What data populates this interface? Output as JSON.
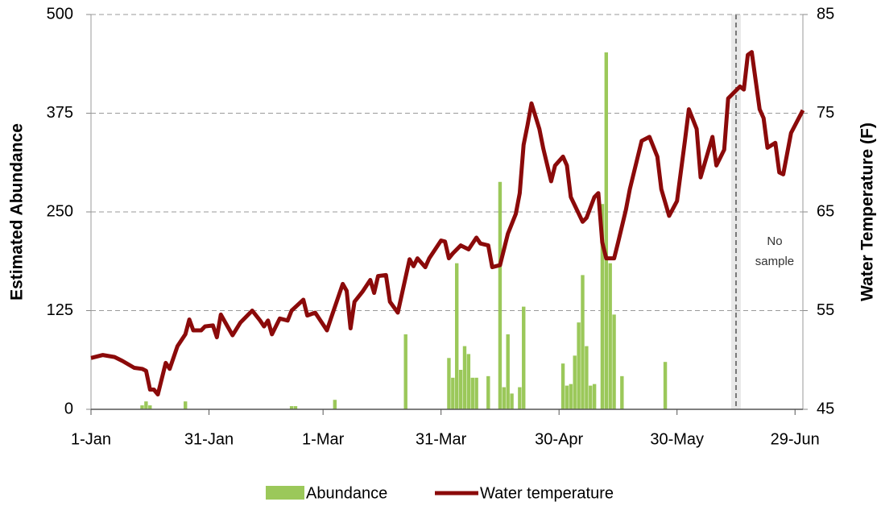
{
  "chart_data": {
    "type": "combo",
    "y_label": "Estimated Abundance",
    "y2_label": "Water Temperature (F)",
    "xlim": [
      0,
      181
    ],
    "xticks": [
      {
        "value": 0,
        "label": "1-Jan"
      },
      {
        "value": 30,
        "label": "31-Jan"
      },
      {
        "value": 59,
        "label": "1-Mar"
      },
      {
        "value": 89,
        "label": "31-Mar"
      },
      {
        "value": 119,
        "label": "30-Apr"
      },
      {
        "value": 149,
        "label": "30-May"
      },
      {
        "value": 179,
        "label": "29-Jun"
      }
    ],
    "ylim": [
      0,
      500
    ],
    "yticks": [
      0,
      125,
      250,
      375,
      500
    ],
    "y2lim": [
      45,
      85
    ],
    "y2ticks": [
      45,
      55,
      65,
      75,
      85
    ],
    "grid": true,
    "legend": "bottom",
    "annotation": {
      "x": 164,
      "lines": [
        "No",
        "sample"
      ]
    },
    "series": [
      {
        "name": "Abundance",
        "type": "bar",
        "color": "#9bc85a",
        "x": [
          13,
          14,
          15,
          24,
          51,
          52,
          62,
          80,
          91,
          92,
          93,
          94,
          95,
          96,
          97,
          98,
          101,
          104,
          105,
          106,
          107,
          109,
          110,
          120,
          121,
          122,
          123,
          124,
          125,
          126,
          127,
          128,
          130,
          131,
          132,
          133,
          135,
          146
        ],
        "values": [
          5,
          10,
          5,
          10,
          4,
          4,
          12,
          95,
          65,
          40,
          185,
          50,
          80,
          70,
          40,
          40,
          42,
          288,
          28,
          95,
          20,
          28,
          130,
          58,
          30,
          32,
          68,
          110,
          170,
          80,
          30,
          32,
          260,
          452,
          185,
          120,
          42,
          60
        ]
      },
      {
        "name": "Water temperature",
        "type": "line",
        "axis": "y2",
        "color": "#8b0a0a",
        "x": [
          0,
          3,
          6,
          8,
          11,
          13,
          14,
          15,
          16,
          17,
          19,
          20,
          22,
          24,
          25,
          26,
          28,
          29,
          31,
          32,
          33,
          35,
          36,
          38,
          41,
          43,
          44,
          45,
          46,
          48,
          50,
          51,
          54,
          55,
          57,
          60,
          61,
          64,
          65,
          66,
          67,
          69,
          71,
          72,
          73,
          75,
          76,
          78,
          81,
          82,
          83,
          85,
          86,
          89,
          90,
          91,
          92,
          94,
          96,
          98,
          99,
          101,
          102,
          104,
          106,
          108,
          109,
          110,
          111,
          112,
          114,
          115,
          117,
          118,
          120,
          121,
          122,
          125,
          126,
          128,
          129,
          130,
          131,
          133,
          134,
          136,
          137,
          140,
          142,
          144,
          145,
          147,
          149,
          151,
          152,
          154,
          155,
          158,
          159,
          161,
          162,
          165,
          166,
          167,
          168,
          170,
          171,
          172,
          174,
          175,
          176,
          178,
          181
        ],
        "values": [
          50.2,
          50.5,
          50.3,
          49.9,
          49.2,
          49.1,
          48.9,
          47,
          47,
          46.5,
          49.7,
          49.1,
          51.4,
          52.6,
          54.1,
          53,
          53,
          53.4,
          53.5,
          52.3,
          54.6,
          53.2,
          52.5,
          53.8,
          55,
          54,
          53.4,
          54,
          52.6,
          54.2,
          54,
          55,
          56.1,
          54.5,
          54.8,
          53,
          54.2,
          57.7,
          57,
          53.2,
          55.9,
          56.9,
          58.1,
          56.8,
          58.5,
          58.6,
          55.9,
          54.8,
          60.2,
          59.5,
          60.3,
          59.4,
          60.3,
          62.1,
          62,
          60.3,
          60.8,
          61.6,
          61.2,
          62.4,
          61.8,
          61.6,
          59.4,
          59.6,
          62.8,
          64.8,
          66.9,
          71.8,
          73.8,
          76,
          73.4,
          71.4,
          68.1,
          69.7,
          70.6,
          69.7,
          66.5,
          64,
          64.4,
          66.5,
          66.9,
          61.9,
          60.3,
          60.3,
          61.9,
          65.2,
          67.3,
          72.2,
          72.6,
          70.6,
          67.3,
          64.6,
          66.1,
          72.2,
          75.4,
          73.4,
          68.5,
          72.6,
          69.7,
          71.3,
          76.5,
          77.7,
          77.4,
          80.9,
          81.2,
          75.4,
          74.5,
          71.5,
          72,
          69,
          68.8,
          73,
          75.3
        ]
      }
    ]
  }
}
